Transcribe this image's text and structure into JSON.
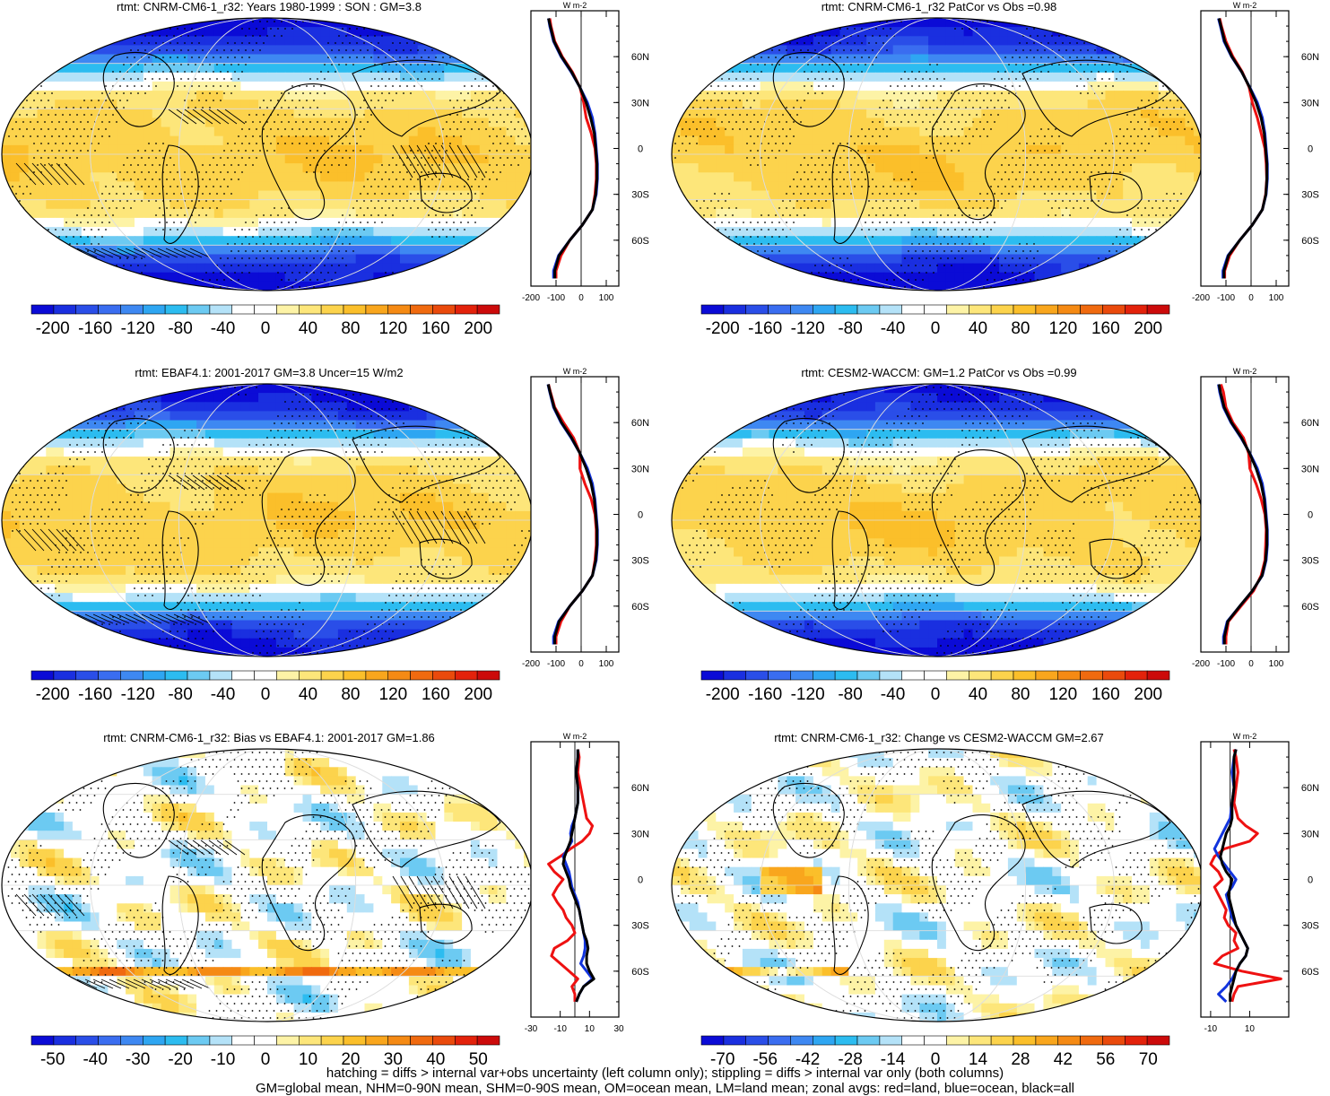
{
  "chart_data": [
    {
      "type": "heatmap",
      "title": "rtmt: CNRM-CM6-1_r32: Years 1980-1999 : SON : GM=3.8",
      "variant": "abs",
      "hatch": true,
      "colorbar": {
        "ticks": [
          "-200",
          "-160",
          "-120",
          "-80",
          "-40",
          "0",
          "40",
          "80",
          "120",
          "160",
          "200"
        ],
        "range": [
          -220,
          220
        ]
      },
      "zonal": {
        "units": "W m-2",
        "xlim": [
          -200,
          150
        ],
        "xticks": [
          "-200",
          "-100",
          "0",
          "100"
        ],
        "yticks": [
          "60N",
          "30N",
          "0",
          "30S",
          "60S"
        ],
        "lat": [
          85,
          80,
          70,
          60,
          50,
          40,
          30,
          20,
          10,
          0,
          -10,
          -20,
          -30,
          -40,
          -50,
          -60,
          -70,
          -80,
          -85
        ],
        "series": [
          {
            "name": "land",
            "color": "#ee1111",
            "values": [
              -125,
              -120,
              -105,
              -75,
              -35,
              -5,
              10,
              20,
              40,
              55,
              60,
              60,
              55,
              45,
              5,
              -45,
              -80,
              -100,
              -100
            ]
          },
          {
            "name": "ocean",
            "color": "#1133dd",
            "values": [
              -130,
              -125,
              -110,
              -80,
              -40,
              -5,
              25,
              45,
              55,
              60,
              65,
              65,
              60,
              45,
              5,
              -45,
              -90,
              -110,
              -110
            ]
          },
          {
            "name": "all",
            "color": "#000000",
            "values": [
              -130,
              -123,
              -108,
              -78,
              -38,
              -5,
              20,
              38,
              52,
              58,
              63,
              63,
              58,
              45,
              5,
              -45,
              -88,
              -105,
              -105
            ]
          }
        ]
      }
    },
    {
      "type": "heatmap",
      "title": "rtmt: CNRM-CM6-1_r32 PatCor vs Obs =0.98",
      "variant": "abs",
      "hatch": false,
      "colorbar": {
        "ticks": [
          "-200",
          "-160",
          "-120",
          "-80",
          "-40",
          "0",
          "40",
          "80",
          "120",
          "160",
          "200"
        ],
        "range": [
          -220,
          220
        ]
      },
      "zonal": {
        "units": "W m-2",
        "xlim": [
          -200,
          150
        ],
        "xticks": [
          "-200",
          "-100",
          "0",
          "100"
        ],
        "yticks": [
          "60N",
          "30N",
          "0",
          "30S",
          "60S"
        ],
        "lat": [
          85,
          80,
          70,
          60,
          50,
          40,
          30,
          20,
          10,
          0,
          -10,
          -20,
          -30,
          -40,
          -50,
          -60,
          -70,
          -80,
          -85
        ],
        "series": [
          {
            "name": "land",
            "color": "#ee1111",
            "values": [
              -125,
              -118,
              -100,
              -72,
              -35,
              -8,
              5,
              25,
              40,
              55,
              60,
              62,
              58,
              45,
              5,
              -45,
              -85,
              -105,
              -105
            ]
          },
          {
            "name": "ocean",
            "color": "#1133dd",
            "values": [
              -130,
              -122,
              -108,
              -78,
              -38,
              -5,
              25,
              45,
              55,
              60,
              65,
              65,
              60,
              45,
              5,
              -45,
              -92,
              -112,
              -112
            ]
          },
          {
            "name": "all",
            "color": "#000000",
            "values": [
              -128,
              -120,
              -105,
              -76,
              -37,
              -6,
              20,
              40,
              52,
              58,
              63,
              63,
              59,
              45,
              5,
              -45,
              -90,
              -108,
              -108
            ]
          }
        ]
      }
    },
    {
      "type": "heatmap",
      "title": "rtmt: EBAF4.1: 2001-2017 GM=3.8 Uncer=15 W/m2",
      "variant": "abs",
      "hatch": true,
      "colorbar": {
        "ticks": [
          "-200",
          "-160",
          "-120",
          "-80",
          "-40",
          "0",
          "40",
          "80",
          "120",
          "160",
          "200"
        ],
        "range": [
          -220,
          220
        ]
      },
      "zonal": {
        "units": "W m-2",
        "xlim": [
          -200,
          150
        ],
        "xticks": [
          "-200",
          "-100",
          "0",
          "100"
        ],
        "yticks": [
          "60N",
          "30N",
          "0",
          "30S",
          "60S"
        ],
        "lat": [
          85,
          80,
          70,
          60,
          50,
          40,
          30,
          20,
          10,
          0,
          -10,
          -20,
          -30,
          -40,
          -50,
          -60,
          -70,
          -80,
          -85
        ],
        "series": [
          {
            "name": "land",
            "color": "#ee1111",
            "values": [
              -130,
              -122,
              -105,
              -70,
              -30,
              -5,
              -5,
              15,
              40,
              55,
              60,
              60,
              55,
              45,
              5,
              -45,
              -80,
              -100,
              -100
            ]
          },
          {
            "name": "ocean",
            "color": "#1133dd",
            "values": [
              -132,
              -125,
              -110,
              -80,
              -40,
              -5,
              25,
              45,
              55,
              60,
              65,
              65,
              60,
              45,
              5,
              -45,
              -90,
              -110,
              -110
            ]
          },
          {
            "name": "all",
            "color": "#000000",
            "values": [
              -131,
              -124,
              -108,
              -78,
              -38,
              -5,
              20,
              40,
              52,
              58,
              63,
              63,
              58,
              45,
              5,
              -45,
              -88,
              -105,
              -105
            ]
          }
        ]
      }
    },
    {
      "type": "heatmap",
      "title": "rtmt: CESM2-WACCM: GM=1.2 PatCor vs Obs =0.99",
      "variant": "abs",
      "hatch": false,
      "colorbar": {
        "ticks": [
          "-200",
          "-160",
          "-120",
          "-80",
          "-40",
          "0",
          "40",
          "80",
          "120",
          "160",
          "200"
        ],
        "range": [
          -220,
          220
        ]
      },
      "zonal": {
        "units": "W m-2",
        "xlim": [
          -200,
          150
        ],
        "xticks": [
          "-200",
          "-100",
          "0",
          "100"
        ],
        "yticks": [
          "60N",
          "30N",
          "0",
          "30S",
          "60S"
        ],
        "lat": [
          85,
          80,
          70,
          60,
          50,
          40,
          30,
          20,
          10,
          0,
          -10,
          -20,
          -30,
          -40,
          -50,
          -60,
          -70,
          -80,
          -85
        ],
        "series": [
          {
            "name": "land",
            "color": "#ee1111",
            "values": [
              -120,
              -110,
              -100,
              -72,
              -30,
              -10,
              -5,
              20,
              40,
              55,
              60,
              58,
              55,
              40,
              10,
              -40,
              -90,
              -100,
              -100
            ]
          },
          {
            "name": "ocean",
            "color": "#1133dd",
            "values": [
              -130,
              -125,
              -110,
              -80,
              -40,
              -5,
              25,
              45,
              55,
              60,
              65,
              65,
              60,
              45,
              5,
              -45,
              -95,
              -110,
              -110
            ]
          },
          {
            "name": "all",
            "color": "#000000",
            "values": [
              -128,
              -122,
              -107,
              -78,
              -38,
              -6,
              20,
              40,
              52,
              58,
              63,
              63,
              58,
              44,
              5,
              -45,
              -93,
              -106,
              -106
            ]
          }
        ]
      }
    },
    {
      "type": "heatmap",
      "title": "rtmt: CNRM-CM6-1_r32: Bias vs EBAF4.1: 2001-2017  GM=1.86",
      "variant": "bias",
      "hatch": true,
      "colorbar": {
        "ticks": [
          "-50",
          "-40",
          "-30",
          "-20",
          "-10",
          "0",
          "10",
          "20",
          "30",
          "40",
          "50"
        ],
        "range": [
          -55,
          55
        ]
      },
      "zonal": {
        "units": "W m-2",
        "xlim": [
          -30,
          30
        ],
        "xticks": [
          "-30",
          "-10",
          "10",
          "30"
        ],
        "yticks": [
          "60N",
          "30N",
          "0",
          "30S",
          "60S"
        ],
        "lat": [
          85,
          80,
          70,
          60,
          50,
          40,
          35,
          30,
          25,
          20,
          15,
          10,
          5,
          0,
          -5,
          -10,
          -15,
          -20,
          -25,
          -30,
          -35,
          -40,
          -45,
          -50,
          -55,
          -60,
          -65,
          -70,
          -75,
          -80
        ],
        "series": [
          {
            "name": "land",
            "color": "#ee1111",
            "values": [
              2,
              3,
              2,
              4,
              6,
              8,
              12,
              10,
              5,
              -3,
              -10,
              -18,
              -14,
              -8,
              -12,
              -15,
              -12,
              -8,
              -6,
              -2,
              0,
              -5,
              -14,
              -16,
              -10,
              -4,
              2,
              -2,
              0,
              0
            ]
          },
          {
            "name": "ocean",
            "color": "#1133dd",
            "values": [
              2,
              2,
              1,
              2,
              2,
              0,
              -2,
              -3,
              -2,
              -5,
              -8,
              -6,
              -4,
              -3,
              -2,
              0,
              2,
              3,
              4,
              5,
              6,
              7,
              7,
              6,
              4,
              8,
              12,
              6,
              3,
              1
            ]
          },
          {
            "name": "all",
            "color": "#000000",
            "values": [
              2,
              2,
              1,
              2,
              2,
              0,
              -1,
              -2,
              -3,
              -5,
              -7,
              -8,
              -6,
              -4,
              -3,
              -1,
              1,
              3,
              4,
              5,
              6,
              8,
              9,
              8,
              8,
              10,
              13,
              6,
              3,
              1
            ]
          }
        ]
      }
    },
    {
      "type": "heatmap",
      "title": "rtmt: CNRM-CM6-1_r32: Change vs CESM2-WACCM GM=2.67",
      "variant": "change",
      "hatch": false,
      "colorbar": {
        "ticks": [
          "-70",
          "-56",
          "-42",
          "-28",
          "-14",
          "0",
          "14",
          "28",
          "42",
          "56",
          "70"
        ],
        "range": [
          -77,
          77
        ]
      },
      "zonal": {
        "units": "W m-2",
        "xlim": [
          -15,
          30
        ],
        "xticks": [
          "-10",
          "10"
        ],
        "yticks": [
          "60N",
          "30N",
          "0",
          "30S",
          "60S"
        ],
        "lat": [
          85,
          80,
          70,
          60,
          50,
          40,
          35,
          30,
          25,
          20,
          15,
          10,
          5,
          0,
          -5,
          -10,
          -15,
          -20,
          -25,
          -30,
          -35,
          -40,
          -45,
          -50,
          -55,
          -60,
          -65,
          -70,
          -75,
          -80
        ],
        "series": [
          {
            "name": "land",
            "color": "#ee1111",
            "values": [
              2,
              3,
              4,
              3,
              2,
              4,
              8,
              14,
              10,
              -3,
              -8,
              -10,
              -6,
              -4,
              -8,
              -6,
              -4,
              -2,
              -3,
              -1,
              3,
              2,
              4,
              -4,
              -8,
              6,
              26,
              4,
              2,
              1
            ]
          },
          {
            "name": "ocean",
            "color": "#1133dd",
            "values": [
              3,
              2,
              1,
              2,
              1,
              0,
              -2,
              -4,
              -6,
              -8,
              -6,
              -3,
              0,
              3,
              1,
              -2,
              -1,
              0,
              1,
              3,
              5,
              7,
              9,
              8,
              5,
              3,
              1,
              -2,
              -6,
              -2
            ]
          },
          {
            "name": "all",
            "color": "#000000",
            "values": [
              3,
              2,
              2,
              2,
              1,
              1,
              0,
              -2,
              -3,
              -4,
              -5,
              -4,
              -2,
              1,
              0,
              -1,
              0,
              1,
              2,
              3,
              5,
              7,
              9,
              8,
              5,
              3,
              2,
              1,
              0,
              0
            ]
          }
        ]
      }
    }
  ],
  "footer": {
    "line1": "hatching = diffs > internal var+obs uncertainty (left column only); stippling = diffs > internal var only (both columns)",
    "line2": "GM=global mean, NHM=0-90N mean, SHM=0-90S mean, OM=ocean mean, LM=land mean; zonal avgs: red=land, blue=ocean, black=all"
  },
  "colors": {
    "abs": [
      "#0b0bd6",
      "#1a2fe0",
      "#2a4ee8",
      "#3a6df0",
      "#3e88f2",
      "#2ea6f2",
      "#2cbcf0",
      "#6ccaf2",
      "#b4e2f8",
      "#ffffff",
      "#ffffff",
      "#fdf3a6",
      "#fde67a",
      "#fcd34c",
      "#fbbf2a",
      "#f9a61d",
      "#f58a14",
      "#f06a0f",
      "#ea4a0c",
      "#e3220b",
      "#cc0a0a"
    ]
  }
}
